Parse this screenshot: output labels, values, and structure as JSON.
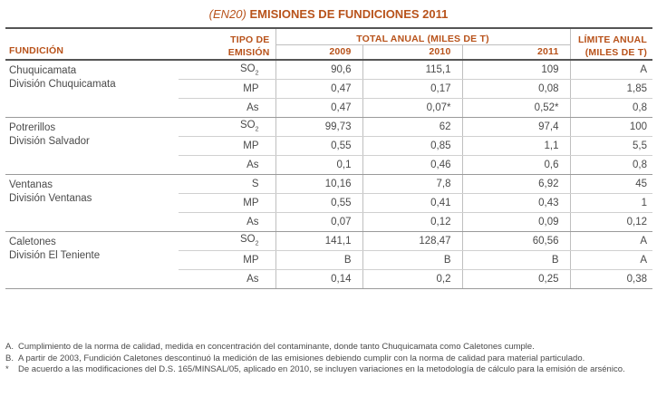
{
  "title": {
    "code": "(EN20)",
    "text": "EMISIONES DE FUNDICIONES 2011"
  },
  "headers": {
    "fundicion": "FUNDICIÓN",
    "tipo_line1": "TIPO DE",
    "tipo_line2": "EMISIÓN",
    "total": "TOTAL ANUAL (MILES DE T)",
    "y2009": "2009",
    "y2010": "2010",
    "y2011": "2011",
    "limite_line1": "LÍMITE ANUAL",
    "limite_line2": "(MILES DE T)"
  },
  "groups": [
    {
      "name1": "Chuquicamata",
      "name2": "División Chuquicamata",
      "rows": [
        {
          "tipo": "SO",
          "sub": "2",
          "v2009": "90,6",
          "v2010": "115,1",
          "v2011": "109",
          "limite": "A"
        },
        {
          "tipo": "MP",
          "sub": "",
          "v2009": "0,47",
          "v2010": "0,17",
          "v2011": "0,08",
          "limite": "1,85"
        },
        {
          "tipo": "As",
          "sub": "",
          "v2009": "0,47",
          "v2010": "0,07*",
          "v2011": "0,52*",
          "limite": "0,8"
        }
      ]
    },
    {
      "name1": "Potrerillos",
      "name2": "División Salvador",
      "rows": [
        {
          "tipo": "SO",
          "sub": "2",
          "v2009": "99,73",
          "v2010": "62",
          "v2011": "97,4",
          "limite": "100"
        },
        {
          "tipo": "MP",
          "sub": "",
          "v2009": "0,55",
          "v2010": "0,85",
          "v2011": "1,1",
          "limite": "5,5"
        },
        {
          "tipo": "As",
          "sub": "",
          "v2009": "0,1",
          "v2010": "0,46",
          "v2011": "0,6",
          "limite": "0,8"
        }
      ]
    },
    {
      "name1": "Ventanas",
      "name2": "División Ventanas",
      "rows": [
        {
          "tipo": "S",
          "sub": "",
          "v2009": "10,16",
          "v2010": "7,8",
          "v2011": "6,92",
          "limite": "45"
        },
        {
          "tipo": "MP",
          "sub": "",
          "v2009": "0,55",
          "v2010": "0,41",
          "v2011": "0,43",
          "limite": "1"
        },
        {
          "tipo": "As",
          "sub": "",
          "v2009": "0,07",
          "v2010": "0,12",
          "v2011": "0,09",
          "limite": "0,12"
        }
      ]
    },
    {
      "name1": "Caletones",
      "name2": "División El Teniente",
      "rows": [
        {
          "tipo": "SO",
          "sub": "2",
          "v2009": "141,1",
          "v2010": "128,47",
          "v2011": "60,56",
          "limite": "A"
        },
        {
          "tipo": "MP",
          "sub": "",
          "v2009": "B",
          "v2010": "B",
          "v2011": "B",
          "limite": "A"
        },
        {
          "tipo": "As",
          "sub": "",
          "v2009": "0,14",
          "v2010": "0,2",
          "v2011": "0,25",
          "limite": "0,38"
        }
      ]
    }
  ],
  "notes": [
    {
      "key": "A.",
      "text": "Cumplimiento de la norma de calidad, medida en concentración del contaminante, donde tanto Chuquicamata como Caletones cumple."
    },
    {
      "key": "B.",
      "text": "A partir de 2003, Fundición Caletones descontinuó la medición de las emisiones debiendo cumplir con la norma de calidad para material particulado."
    },
    {
      "key": "*",
      "text": "De acuerdo a las modificaciones del D.S. 165/MINSAL/05, aplicado en 2010, se incluyen variaciones en la metodología de cálculo para la emisión de arsénico."
    }
  ]
}
